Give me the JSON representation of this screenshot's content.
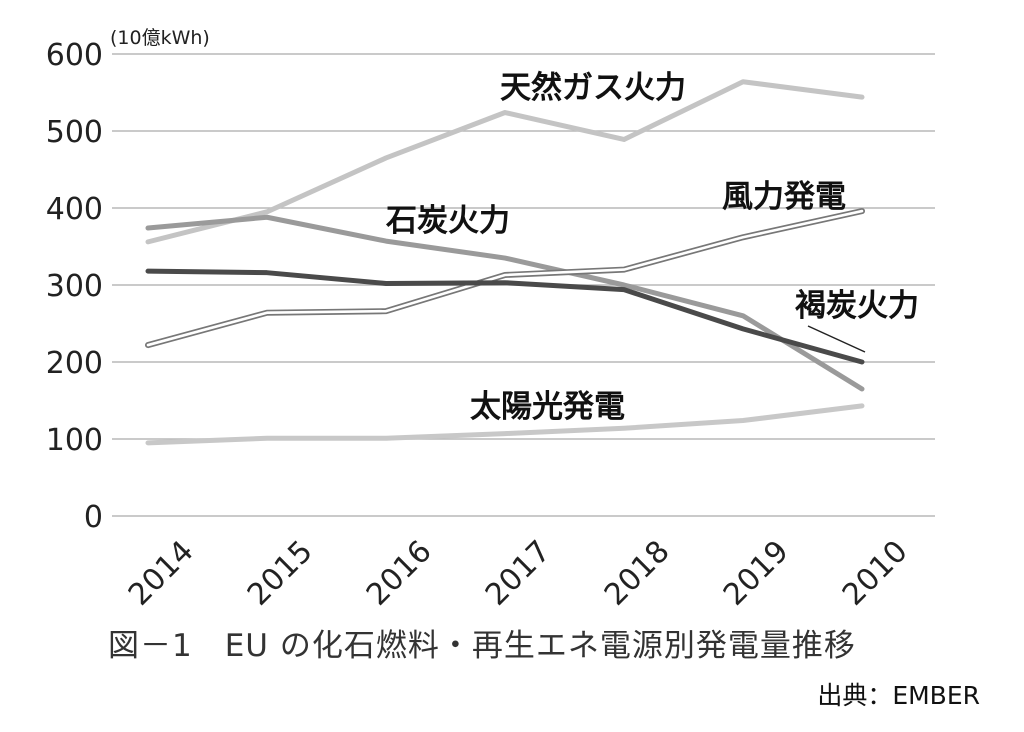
{
  "chart_data": {
    "type": "line",
    "unit_label": "(10億kWh)",
    "categories": [
      "2014",
      "2015",
      "2016",
      "2017",
      "2018",
      "2019",
      "2010"
    ],
    "ylim": [
      0,
      600
    ],
    "yticks": [
      0,
      100,
      200,
      300,
      400,
      500,
      600
    ],
    "grid": true,
    "series": [
      {
        "name": "天然ガス火力",
        "color": "#c4c4c4",
        "style": "solid",
        "values": [
          356,
          395,
          465,
          524,
          489,
          564,
          544
        ]
      },
      {
        "name": "石炭火力",
        "color": "#9a9a9a",
        "style": "solid",
        "values": [
          374,
          388,
          357,
          335,
          300,
          260,
          165
        ]
      },
      {
        "name": "風力発電",
        "color": "#777777",
        "style": "double",
        "values": [
          222,
          264,
          266,
          313,
          320,
          362,
          396
        ]
      },
      {
        "name": "褐炭火力",
        "color": "#4a4a4a",
        "style": "solid",
        "values": [
          318,
          316,
          302,
          303,
          294,
          243,
          200
        ]
      },
      {
        "name": "太陽光発電",
        "color": "#c8c8c8",
        "style": "solid",
        "values": [
          95,
          101,
          101,
          107,
          114,
          124,
          143
        ]
      }
    ]
  },
  "caption": "図－1　EU の化石燃料・再生エネ電源別発電量推移",
  "source": "出典：EMBER"
}
